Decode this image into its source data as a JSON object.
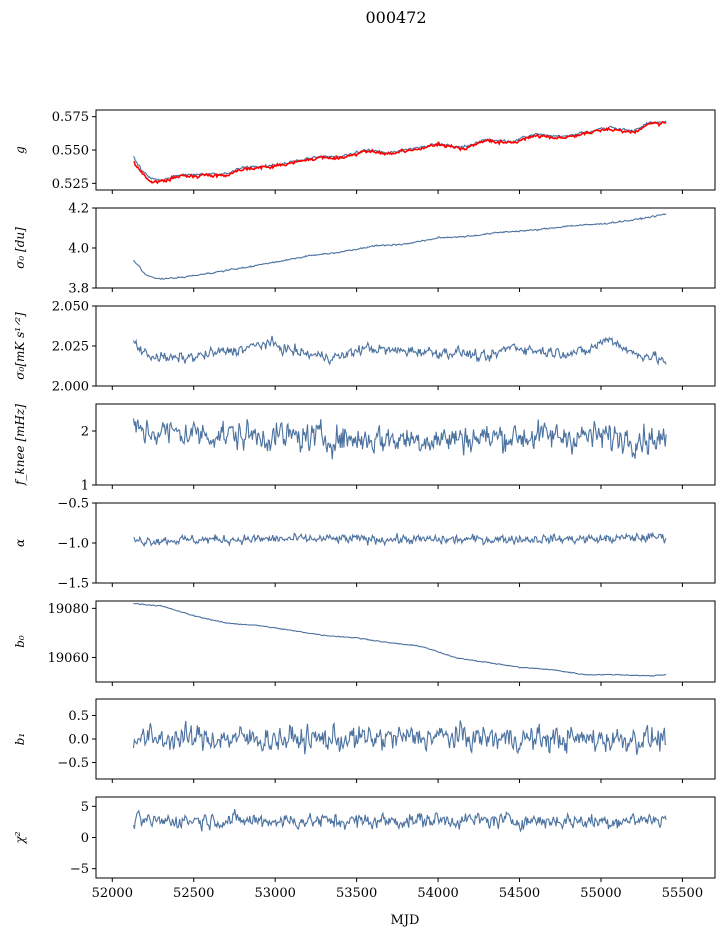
{
  "chart_data": {
    "type": "line",
    "title": "000472",
    "xlabel": "MJD",
    "xlim": [
      51900,
      55700
    ],
    "x_ticks": [
      52000,
      52500,
      53000,
      53500,
      54000,
      54500,
      55000,
      55500
    ],
    "x_start": 52130,
    "x_end": 55400,
    "grid": false,
    "colors": {
      "series": "#4c72a0",
      "overlay": "#ff0000"
    },
    "panels": [
      {
        "key": "g",
        "ylabel": "g",
        "ylim": [
          0.52,
          0.58
        ],
        "yticks": [
          0.525,
          0.55,
          0.575
        ],
        "yticklabels": [
          "0.525",
          "0.550",
          "0.575"
        ],
        "noise": 0.001,
        "series": {
          "x": [
            52130,
            52180,
            52230,
            52300,
            52400,
            52550,
            52700,
            52800,
            52950,
            53100,
            53250,
            53400,
            53550,
            53700,
            53850,
            54000,
            54150,
            54300,
            54450,
            54600,
            54750,
            54900,
            55050,
            55200,
            55300,
            55400
          ],
          "y": [
            0.545,
            0.535,
            0.529,
            0.527,
            0.531,
            0.532,
            0.532,
            0.537,
            0.538,
            0.541,
            0.545,
            0.545,
            0.55,
            0.548,
            0.551,
            0.555,
            0.552,
            0.558,
            0.556,
            0.562,
            0.56,
            0.563,
            0.567,
            0.564,
            0.571,
            0.571
          ]
        },
        "overlay": {
          "x": [
            52130,
            52180,
            52230,
            52300,
            52400,
            52550,
            52700,
            52800,
            52950,
            53100,
            53250,
            53400,
            53550,
            53700,
            53850,
            54000,
            54150,
            54300,
            54450,
            54600,
            54750,
            54900,
            55050,
            55200,
            55300,
            55400
          ],
          "y": [
            0.541,
            0.533,
            0.527,
            0.526,
            0.53,
            0.531,
            0.531,
            0.536,
            0.537,
            0.54,
            0.544,
            0.544,
            0.549,
            0.547,
            0.55,
            0.554,
            0.551,
            0.557,
            0.555,
            0.561,
            0.559,
            0.562,
            0.566,
            0.563,
            0.57,
            0.57
          ]
        }
      },
      {
        "key": "sigma0",
        "ylabel": "σ₀ [du]",
        "ylim": [
          3.8,
          4.2
        ],
        "yticks": [
          3.8,
          4.0,
          4.2
        ],
        "yticklabels": [
          "3.8",
          "4.0",
          "4.2"
        ],
        "noise": 0.004,
        "series": {
          "x": [
            52130,
            52200,
            52280,
            52400,
            52600,
            52800,
            53000,
            53200,
            53400,
            53600,
            53800,
            54000,
            54200,
            54400,
            54600,
            54800,
            55000,
            55200,
            55400
          ],
          "y": [
            3.94,
            3.87,
            3.845,
            3.85,
            3.875,
            3.9,
            3.93,
            3.96,
            3.98,
            4.01,
            4.02,
            4.05,
            4.06,
            4.08,
            4.09,
            4.11,
            4.12,
            4.14,
            4.17
          ]
        }
      },
      {
        "key": "sigma0_mks",
        "ylabel": "σ₀[mK s¹ᐟ²]",
        "ylim": [
          2.0,
          2.05
        ],
        "yticks": [
          2.0,
          2.025,
          2.05
        ],
        "yticklabels": [
          "2.000",
          "2.025",
          "2.050"
        ],
        "noise": 0.0035,
        "series": {
          "x": [
            52130,
            52200,
            52350,
            52500,
            52650,
            52800,
            52950,
            53100,
            53250,
            53400,
            53550,
            53700,
            53850,
            54000,
            54150,
            54300,
            54450,
            54600,
            54750,
            54900,
            55050,
            55200,
            55300,
            55400
          ],
          "y": [
            2.028,
            2.02,
            2.017,
            2.018,
            2.021,
            2.023,
            2.027,
            2.022,
            2.019,
            2.018,
            2.024,
            2.022,
            2.022,
            2.021,
            2.021,
            2.017,
            2.025,
            2.022,
            2.021,
            2.021,
            2.03,
            2.02,
            2.019,
            2.015
          ]
        }
      },
      {
        "key": "fknee",
        "ylabel": "f_knee [mHz]",
        "ylim": [
          1,
          2.5
        ],
        "yticks": [
          1,
          2
        ],
        "yticklabels": [
          "1",
          "2"
        ],
        "noise": 0.28,
        "series": {
          "x": [
            52130,
            52500,
            53000,
            53500,
            54000,
            54500,
            55000,
            55400
          ],
          "y": [
            2.0,
            1.95,
            1.9,
            1.85,
            1.85,
            1.9,
            1.9,
            1.85
          ]
        }
      },
      {
        "key": "alpha",
        "ylabel": "α",
        "ylim": [
          -1.5,
          -0.5
        ],
        "yticks": [
          -1.5,
          -1.0,
          -0.5
        ],
        "yticklabels": [
          "−1.5",
          "−1.0",
          "−0.5"
        ],
        "noise": 0.06,
        "series": {
          "x": [
            52130,
            52500,
            53000,
            53500,
            54000,
            54500,
            55000,
            55400
          ],
          "y": [
            -0.97,
            -0.96,
            -0.95,
            -0.95,
            -0.96,
            -0.95,
            -0.95,
            -0.92
          ]
        }
      },
      {
        "key": "b0",
        "ylabel": "b₀",
        "ylim": [
          19050,
          19083
        ],
        "yticks": [
          19060,
          19080
        ],
        "yticklabels": [
          "19060",
          "19080"
        ],
        "noise": 0.2,
        "series": {
          "x": [
            52130,
            52300,
            52500,
            52700,
            52900,
            53100,
            53300,
            53500,
            53700,
            53900,
            54100,
            54300,
            54500,
            54700,
            54900,
            55100,
            55300,
            55400
          ],
          "y": [
            19082,
            19081,
            19077,
            19074,
            19073,
            19071,
            19069,
            19068,
            19066,
            19064.5,
            19060,
            19058,
            19056,
            19055,
            19053,
            19053,
            19052.5,
            19053
          ]
        }
      },
      {
        "key": "b1",
        "ylabel": "b₁",
        "ylim": [
          -0.85,
          0.85
        ],
        "yticks": [
          -0.5,
          0.0,
          0.5
        ],
        "yticklabels": [
          "−0.5",
          "0.0",
          "0.5"
        ],
        "noise": 0.28,
        "series": {
          "x": [
            52130,
            52500,
            53000,
            53500,
            54000,
            54500,
            55000,
            55400
          ],
          "y": [
            0.0,
            0.02,
            0.0,
            0.0,
            0.05,
            0.0,
            0.0,
            0.0
          ]
        }
      },
      {
        "key": "chi2",
        "ylabel": "χ²",
        "ylim": [
          -6.5,
          6.5
        ],
        "yticks": [
          -5,
          0,
          5
        ],
        "yticklabels": [
          "−5",
          "0",
          "5"
        ],
        "noise": 1.3,
        "series": {
          "x": [
            52130,
            52500,
            53000,
            53500,
            54000,
            54500,
            55000,
            55400
          ],
          "y": [
            2.5,
            2.8,
            2.7,
            2.6,
            2.8,
            2.7,
            2.6,
            3.0
          ]
        }
      }
    ]
  }
}
